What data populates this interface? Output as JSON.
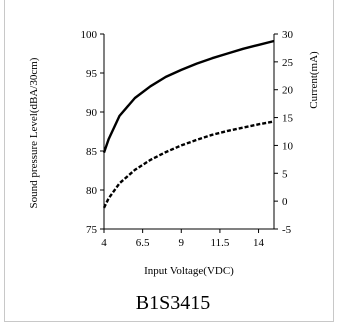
{
  "caption": "B1S3415",
  "chart_data": {
    "type": "line",
    "xlabel": "Input Voltage(VDC)",
    "ylabel_left": "Sound pressure Level(dBA/30cm)",
    "ylabel_right": "Current(mA)",
    "x_ticks": [
      "4",
      "6.5",
      "9",
      "11.5",
      "14"
    ],
    "y_left_ticks": [
      "75",
      "80",
      "85",
      "90",
      "95",
      "100"
    ],
    "y_right_ticks": [
      "-5",
      "0",
      "5",
      "10",
      "15",
      "20",
      "25",
      "30"
    ],
    "xlim": [
      4,
      15
    ],
    "ylim_left": [
      75,
      100
    ],
    "ylim_right": [
      -5,
      30
    ],
    "grid": false,
    "series": [
      {
        "axis": "left",
        "style": "solid",
        "color": "#000000",
        "x": [
          4,
          4.3,
          5,
          6,
          7,
          8,
          9,
          10,
          11,
          12,
          13,
          14,
          15
        ],
        "y": [
          84.8,
          86.5,
          89.5,
          91.8,
          93.3,
          94.5,
          95.4,
          96.2,
          96.9,
          97.5,
          98.1,
          98.6,
          99.1
        ]
      },
      {
        "axis": "right",
        "style": "dashed",
        "color": "#000000",
        "x": [
          4,
          4.3,
          5,
          6,
          7,
          8,
          9,
          10,
          11,
          12,
          13,
          14,
          15
        ],
        "y": [
          -1.2,
          0.5,
          3.2,
          5.6,
          7.4,
          8.8,
          10.0,
          11.0,
          11.9,
          12.6,
          13.2,
          13.8,
          14.3
        ]
      }
    ]
  }
}
